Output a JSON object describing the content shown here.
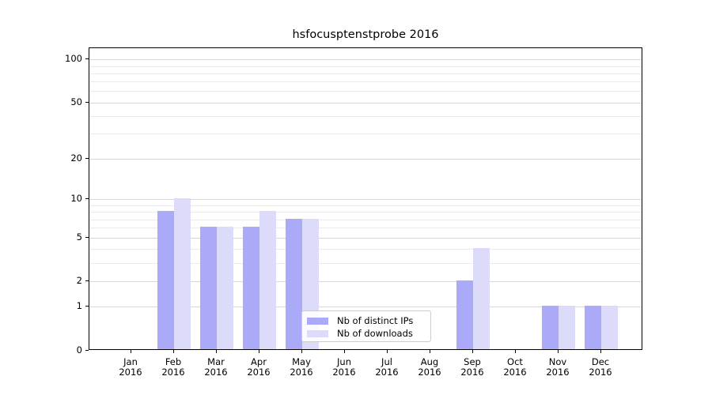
{
  "chart_data": {
    "type": "bar",
    "title": "hsfocusptenstprobe 2016",
    "x_tick_year": "2016",
    "categories": [
      "Jan",
      "Feb",
      "Mar",
      "Apr",
      "May",
      "Jun",
      "Jul",
      "Aug",
      "Sep",
      "Oct",
      "Nov",
      "Dec"
    ],
    "series": [
      {
        "name": "Nb of distinct IPs",
        "color": "#aaaaf9",
        "values": [
          0,
          8,
          6,
          6,
          7,
          0,
          0,
          0,
          2,
          0,
          1,
          1
        ]
      },
      {
        "name": "Nb of downloads",
        "color": "#dcdcfa",
        "values": [
          0,
          10,
          6,
          8,
          7,
          0,
          0,
          0,
          4,
          0,
          1,
          1
        ]
      }
    ],
    "yscale": "log1p",
    "ylim": [
      0,
      114
    ],
    "yticks": [
      {
        "value": 0,
        "label": "0"
      },
      {
        "value": 1,
        "label": "1"
      },
      {
        "value": 2,
        "label": "2"
      },
      {
        "value": 5,
        "label": "5"
      },
      {
        "value": 10,
        "label": "10"
      },
      {
        "value": 20,
        "label": "20"
      },
      {
        "value": 50,
        "label": "50"
      },
      {
        "value": 100,
        "label": "100"
      }
    ],
    "minor_yticks": [
      3,
      4,
      6,
      7,
      8,
      9,
      30,
      40,
      60,
      70,
      80,
      90
    ],
    "grid": "horizontal",
    "legend_position": "lower-center-inside",
    "colors": {
      "major_grid": "#d6d6d6",
      "minor_grid": "#ebebeb",
      "axis": "#000000",
      "background": "#ffffff",
      "legend_border": "#cccccc"
    }
  }
}
